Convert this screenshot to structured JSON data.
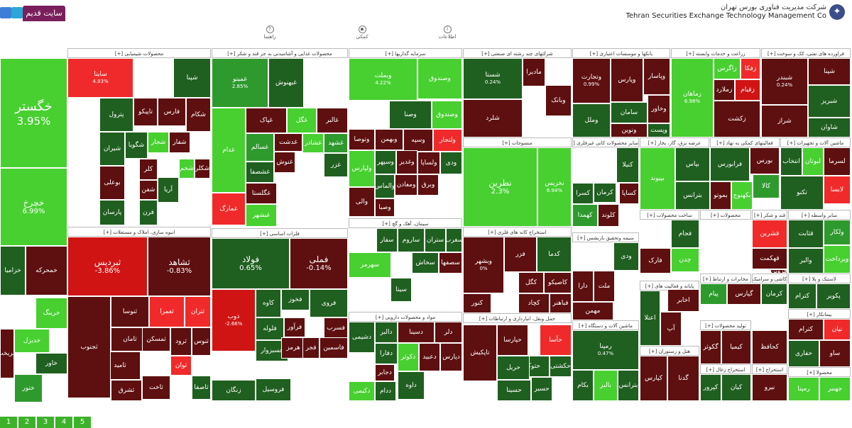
{
  "header": {
    "old_site_label": "سایت قدیم",
    "company_fa": "شرکت مدیریت فناوری بورس تهران",
    "company_en": "Tehran Securities Exchange Technology Management Co",
    "logo_icon": "tsetmc-logo-icon"
  },
  "nav": [
    {
      "label": "اطلاعات",
      "icon": "info-icon"
    },
    {
      "label": "کمکی",
      "icon": "apps-icon"
    },
    {
      "label": "راهنما",
      "icon": "help-icon"
    }
  ],
  "pager": [
    "1",
    "2",
    "3",
    "4",
    "5"
  ],
  "colors": {
    "dark_green": "#1f5f1f",
    "green": "#2e9a2e",
    "light_green": "#47d030",
    "dark_red": "#5e0f0f",
    "red": "#d01414",
    "bright_red": "#f02a2a"
  },
  "sections": [
    {
      "title": "فراورده های نفتی، کک و سوخت [+]"
    },
    {
      "title": "زراعت و خدمات وابسته [+]"
    },
    {
      "title": "بانکها و موسسات اعتباری [+]"
    },
    {
      "title": "شرکتهای چند رشته ای صنعتی [+]"
    },
    {
      "title": "سرمایه گذاریها [+]"
    },
    {
      "title": "محصولات غذایی و آشامیدنی به جز قند و شکر [+]"
    },
    {
      "title": "محصولات شیمیایی [+]"
    },
    {
      "title": "انبوه سازی، املاک و مستغلات [+]"
    },
    {
      "title": "فلزات اساسی [+]"
    },
    {
      "title": "سیمان، آهک و گچ [+]"
    },
    {
      "title": "مواد و محصولات دارویی [+]"
    },
    {
      "title": "منسوجات [+]"
    },
    {
      "title": "استخراج کانه های فلزی [+]"
    },
    {
      "title": "حمل ونقل، انبارداری و ارتباطات [+]"
    },
    {
      "title": "سایر محصولات کانی غیرفلزی [+]"
    },
    {
      "title": "عرضه برق، گاز، بخار [+]"
    },
    {
      "title": "فعالیتهای کمکی به نهاد [+]"
    },
    {
      "title": "ماشین آلات و تجهیزات [+]"
    },
    {
      "title": "ساخت محصولات [+]"
    },
    {
      "title": "محصولات [+]"
    },
    {
      "title": "قند و شکر [+]"
    },
    {
      "title": "سایر واسطه [+]"
    },
    {
      "title": "سیمه وتحقیق بازنشس [+]"
    },
    {
      "title": "پایانه و فعالیت های [+]"
    },
    {
      "title": "مخابرات و ارتباط [+]"
    },
    {
      "title": "کاشی و سرامیک [+]"
    },
    {
      "title": "لاستیک و پلا [+]"
    },
    {
      "title": "ماشین آلات و دستگاه [+]"
    },
    {
      "title": "هتل و رستوران [+]"
    },
    {
      "title": "تولید محصولات [+]"
    },
    {
      "title": "استخراج زغال [+]"
    },
    {
      "title": "استخراج [+]"
    },
    {
      "title": "بیمانکار [+]"
    },
    {
      "title": "محصولا [+]"
    }
  ],
  "tiles": {
    "khegostar": {
      "name": "خگستر",
      "pct": "3.95%"
    },
    "khchar": {
      "name": "خچرخ",
      "pct": "6.99%"
    },
    "khzamia": {
      "name": "خزامیا",
      "pct": ""
    },
    "khrining": {
      "name": "خرینگ",
      "pct": ""
    },
    "khodro": {
      "name": "خدیزل",
      "pct": ""
    },
    "khavar": {
      "name": "خاور",
      "pct": ""
    },
    "khtoor": {
      "name": "ختور",
      "pct": ""
    },
    "khnasa": {
      "name": "خمحرکه",
      "pct": ""
    },
    "khparan": {
      "name": "خریخت",
      "pct": ""
    },
    "tile_a1": {
      "name": "ساینا",
      "pct": "4.93%"
    },
    "tile_a2": {
      "name": "شپنا",
      "pct": ""
    },
    "tile_a3": {
      "name": "فارس",
      "pct": ""
    },
    "tile_a4": {
      "name": "تاپیکو",
      "pct": ""
    },
    "tile_a5": {
      "name": "پترول",
      "pct": ""
    },
    "tile_a6": {
      "name": "شیران",
      "pct": ""
    },
    "tile_a7": {
      "name": "بوعلی",
      "pct": ""
    },
    "tile_a8": {
      "name": "پارسان",
      "pct": ""
    },
    "tile_a9": {
      "name": "شگویا",
      "pct": ""
    },
    "tile_a10": {
      "name": "شجار",
      "pct": ""
    },
    "tile_a11": {
      "name": "شفار",
      "pct": ""
    },
    "tile_a12": {
      "name": "آریا",
      "pct": ""
    },
    "tile_a13": {
      "name": "کلر",
      "pct": ""
    },
    "tile_a14": {
      "name": "شخم",
      "pct": ""
    },
    "tile_a15": {
      "name": "شکلر",
      "pct": ""
    },
    "tile_a16": {
      "name": "شفن",
      "pct": ""
    },
    "tile_a17": {
      "name": "فرن",
      "pct": ""
    },
    "tile_a18": {
      "name": "شکام",
      "pct": ""
    },
    "tile_b1": {
      "name": "غمینو",
      "pct": "2.85%"
    },
    "tile_b2": {
      "name": "غبهنوش",
      "pct": ""
    },
    "tile_b3": {
      "name": "غالبر",
      "pct": ""
    },
    "tile_b4": {
      "name": "غگل",
      "pct": ""
    },
    "tile_b5": {
      "name": "غپاک",
      "pct": ""
    },
    "tile_b6": {
      "name": "غشهد",
      "pct": ""
    },
    "tile_b7": {
      "name": "غدشت",
      "pct": ""
    },
    "tile_b8": {
      "name": "غشاذر",
      "pct": ""
    },
    "tile_b9": {
      "name": "غسالم",
      "pct": ""
    },
    "tile_b10": {
      "name": "غشصفا",
      "pct": ""
    },
    "tile_b11": {
      "name": "غنوش",
      "pct": ""
    },
    "tile_b12": {
      "name": "غگلستا",
      "pct": ""
    },
    "tile_b13": {
      "name": "غبشهر",
      "pct": ""
    },
    "tile_b14": {
      "name": "غزر",
      "pct": ""
    },
    "tile_b15": {
      "name": "غدام",
      "pct": ""
    },
    "tile_b16": {
      "name": "غمارگ",
      "pct": ""
    },
    "tile_c1": {
      "name": "وبملت",
      "pct": "4.22%"
    },
    "tile_c2": {
      "name": "وصندوق",
      "pct": ""
    },
    "tile_c3": {
      "name": "وصنا",
      "pct": ""
    },
    "tile_c4": {
      "name": "ولتجار",
      "pct": ""
    },
    "tile_c5": {
      "name": "وبهمن",
      "pct": ""
    },
    "tile_c6": {
      "name": "وسپه",
      "pct": ""
    },
    "tile_c7": {
      "name": "وتوصا",
      "pct": ""
    },
    "tile_c8": {
      "name": "ولساپا",
      "pct": ""
    },
    "tile_c9": {
      "name": "وصندوق",
      "pct": ""
    },
    "tile_c10": {
      "name": "ولپارس",
      "pct": ""
    },
    "tile_c11": {
      "name": "والماس",
      "pct": ""
    },
    "tile_c12": {
      "name": "ودی",
      "pct": ""
    },
    "tile_c13": {
      "name": "وسپهر",
      "pct": ""
    },
    "tile_c14": {
      "name": "وغدیر",
      "pct": ""
    },
    "tile_c15": {
      "name": "والی",
      "pct": ""
    },
    "tile_c16": {
      "name": "ومعادن",
      "pct": ""
    },
    "tile_c17": {
      "name": "وصبا",
      "pct": ""
    },
    "tile_c18": {
      "name": "وبرق",
      "pct": ""
    },
    "tile_d1": {
      "name": "شستا",
      "pct": "0.24%"
    },
    "tile_d2": {
      "name": "وبانک",
      "pct": ""
    },
    "tile_d3": {
      "name": "شلرد",
      "pct": ""
    },
    "tile_d4": {
      "name": "مادیرا",
      "pct": ""
    },
    "tile_e1": {
      "name": "وتجارت",
      "pct": "0.99%"
    },
    "tile_e2": {
      "name": "وپارس",
      "pct": ""
    },
    "tile_e3": {
      "name": "وپاسار",
      "pct": ""
    },
    "tile_e4": {
      "name": "سامان",
      "pct": ""
    },
    "tile_e5": {
      "name": "وخاور",
      "pct": ""
    },
    "tile_e6": {
      "name": "ونوین",
      "pct": ""
    },
    "tile_e7": {
      "name": "وملل",
      "pct": ""
    },
    "tile_e8": {
      "name": "وپست",
      "pct": ""
    },
    "tile_f1": {
      "name": "زماهان",
      "pct": "6.98%"
    },
    "tile_f2": {
      "name": "زاگرس",
      "pct": ""
    },
    "tile_f3": {
      "name": "زفکا",
      "pct": ""
    },
    "tile_f4": {
      "name": "زملارد",
      "pct": ""
    },
    "tile_f5": {
      "name": "زقیام",
      "pct": ""
    },
    "tile_f6": {
      "name": "زکشت",
      "pct": ""
    },
    "tile_g1": {
      "name": "شبندر",
      "pct": "0.24%"
    },
    "tile_g2": {
      "name": "شبریز",
      "pct": ""
    },
    "tile_g3": {
      "name": "شپنا",
      "pct": ""
    },
    "tile_g4": {
      "name": "شراز",
      "pct": ""
    },
    "tile_g5": {
      "name": "شاوان",
      "pct": ""
    },
    "tile_h1": {
      "name": "ثنوسا",
      "pct": ""
    },
    "tile_h2": {
      "name": "ثشاهد",
      "pct": "-0.83%"
    },
    "tile_h3": {
      "name": "ثبردیس",
      "pct": "-3.86%"
    },
    "tile_h4": {
      "name": "ثتران",
      "pct": ""
    },
    "tile_h5": {
      "name": "ثامید",
      "pct": ""
    },
    "tile_h6": {
      "name": "ثامان",
      "pct": ""
    },
    "tile_h7": {
      "name": "ثمسکن",
      "pct": ""
    },
    "tile_h8": {
      "name": "ثرود",
      "pct": ""
    },
    "tile_h9": {
      "name": "ثنوس",
      "pct": ""
    },
    "tile_h10": {
      "name": "ثاخت",
      "pct": ""
    },
    "tile_h11": {
      "name": "ثشرق",
      "pct": ""
    },
    "tile_h12": {
      "name": "ثعمرا",
      "pct": ""
    },
    "tile_h13": {
      "name": "ثجنوب",
      "pct": ""
    },
    "tile_h14": {
      "name": "ثوان",
      "pct": ""
    },
    "tile_h15": {
      "name": "ثاصفا",
      "pct": ""
    },
    "tile_i1": {
      "name": "فولاد",
      "pct": "0.65%"
    },
    "tile_i2": {
      "name": "فملی",
      "pct": "-0.14%"
    },
    "tile_i3": {
      "name": "ذوب",
      "pct": "-2.66%"
    },
    "tile_i4": {
      "name": "فخوز",
      "pct": ""
    },
    "tile_i5": {
      "name": "فروی",
      "pct": ""
    },
    "tile_i6": {
      "name": "فسبزوار",
      "pct": ""
    },
    "tile_i7": {
      "name": "فلوله",
      "pct": ""
    },
    "tile_i8": {
      "name": "کاوه",
      "pct": ""
    },
    "tile_i9": {
      "name": "فرآور",
      "pct": ""
    },
    "tile_i10": {
      "name": "هرمز",
      "pct": ""
    },
    "tile_i11": {
      "name": "فجر",
      "pct": ""
    },
    "tile_i12": {
      "name": "فسرب",
      "pct": ""
    },
    "tile_i13": {
      "name": "زنگان",
      "pct": ""
    },
    "tile_i14": {
      "name": "فروسیل",
      "pct": ""
    },
    "tile_i15": {
      "name": "فاسمین",
      "pct": ""
    },
    "tile_j1": {
      "name": "ساروم",
      "pct": ""
    },
    "tile_j2": {
      "name": "سیتا",
      "pct": ""
    },
    "tile_j3": {
      "name": "ستران",
      "pct": ""
    },
    "tile_j4": {
      "name": "سغرب",
      "pct": ""
    },
    "tile_j5": {
      "name": "سفار",
      "pct": ""
    },
    "tile_j6": {
      "name": "سهرمز",
      "pct": ""
    },
    "tile_j7": {
      "name": "سخاش",
      "pct": ""
    },
    "tile_j8": {
      "name": "سصفها",
      "pct": ""
    },
    "tile_k1": {
      "name": "دلر",
      "pct": ""
    },
    "tile_k2": {
      "name": "دجابر",
      "pct": ""
    },
    "tile_k3": {
      "name": "دسینا",
      "pct": ""
    },
    "tile_k4": {
      "name": "دفارا",
      "pct": ""
    },
    "tile_k5": {
      "name": "ددام",
      "pct": ""
    },
    "tile_k6": {
      "name": "دشیمی",
      "pct": ""
    },
    "tile_k7": {
      "name": "دالبر",
      "pct": ""
    },
    "tile_k8": {
      "name": "دکوثر",
      "pct": ""
    },
    "tile_k9": {
      "name": "داوه",
      "pct": ""
    },
    "tile_k10": {
      "name": "دکیمی",
      "pct": ""
    },
    "tile_k11": {
      "name": "دعبید",
      "pct": ""
    },
    "tile_k12": {
      "name": "دپارس",
      "pct": ""
    },
    "tile_l1": {
      "name": "نطرین",
      "pct": "2.3%"
    },
    "tile_l2": {
      "name": "نخریس",
      "pct": "6.94%"
    },
    "tile_m1": {
      "name": "وبشهر",
      "pct": "0%"
    },
    "tile_m2": {
      "name": "فزر",
      "pct": ""
    },
    "tile_m3": {
      "name": "کدما",
      "pct": ""
    },
    "tile_m4": {
      "name": "کگل",
      "pct": ""
    },
    "tile_m5": {
      "name": "کاصیکو",
      "pct": ""
    },
    "tile_m6": {
      "name": "کچاد",
      "pct": ""
    },
    "tile_m7": {
      "name": "کنور",
      "pct": ""
    },
    "tile_m8": {
      "name": "فباهنر",
      "pct": ""
    },
    "tile_n1": {
      "name": "حتوکا",
      "pct": ""
    },
    "tile_n2": {
      "name": "حکشتی",
      "pct": ""
    },
    "tile_n3": {
      "name": "حریل",
      "pct": ""
    },
    "tile_n4": {
      "name": "حسیر",
      "pct": ""
    },
    "tile_n5": {
      "name": "حپارسا",
      "pct": ""
    },
    "tile_n6": {
      "name": "حآسا",
      "pct": ""
    },
    "tile_n7": {
      "name": "تاپکیش",
      "pct": ""
    },
    "tile_n8": {
      "name": "حسینا",
      "pct": ""
    },
    "tile_o1": {
      "name": "کرمان",
      "pct": ""
    },
    "tile_o2": {
      "name": "کسرا",
      "pct": ""
    },
    "tile_o3": {
      "name": "کنیلا",
      "pct": ""
    },
    "tile_o4": {
      "name": "کهمدا",
      "pct": ""
    },
    "tile_o5": {
      "name": "کلوند",
      "pct": ""
    },
    "tile_o6": {
      "name": "کساپا",
      "pct": ""
    },
    "tile_p1": {
      "name": "بورس",
      "pct": ""
    },
    "tile_p2": {
      "name": "فرابورس",
      "pct": ""
    },
    "tile_p3": {
      "name": "کالا",
      "pct": ""
    },
    "tile_p4": {
      "name": "بموتو",
      "pct": ""
    },
    "tile_p5": {
      "name": "بپیوند",
      "pct": ""
    },
    "tile_p6": {
      "name": "بپاس",
      "pct": ""
    },
    "tile_p7": {
      "name": "بترانس",
      "pct": ""
    },
    "tile_p8": {
      "name": "بکهنوج",
      "pct": ""
    },
    "tile_q1": {
      "name": "لسرما",
      "pct": ""
    },
    "tile_q2": {
      "name": "لابسا",
      "pct": ""
    },
    "tile_q3": {
      "name": "تکنو",
      "pct": ""
    },
    "tile_q4": {
      "name": "انتخاب",
      "pct": ""
    },
    "tile_q5": {
      "name": "لبوتان",
      "pct": ""
    },
    "tile_r1": {
      "name": "فجام",
      "pct": ""
    },
    "tile_r2": {
      "name": "چدن",
      "pct": ""
    },
    "tile_r3": {
      "name": "فارک",
      "pct": ""
    },
    "tile_r4": {
      "name": "قشرین",
      "pct": ""
    },
    "tile_r5": {
      "name": "قهکمت",
      "pct": ""
    },
    "tile_r6": {
      "name": "قزوین",
      "pct": ""
    },
    "tile_r7": {
      "name": "قثابت",
      "pct": ""
    },
    "tile_r8": {
      "name": "والبر",
      "pct": ""
    },
    "tile_r9": {
      "name": "ولکار",
      "pct": ""
    },
    "tile_r10": {
      "name": "وپرداخت",
      "pct": ""
    },
    "tile_s1": {
      "name": "ودی",
      "pct": ""
    },
    "tile_s2": {
      "name": "دارا",
      "pct": ""
    },
    "tile_s3": {
      "name": "ملت",
      "pct": ""
    },
    "tile_s4": {
      "name": "مهمن",
      "pct": ""
    },
    "tile_s5": {
      "name": "اخابر",
      "pct": ""
    },
    "tile_s6": {
      "name": "کرمان",
      "pct": ""
    },
    "tile_s7": {
      "name": "کترام",
      "pct": ""
    },
    "tile_s8": {
      "name": "پکویر",
      "pct": ""
    },
    "tile_s9": {
      "name": "پیام",
      "pct": ""
    },
    "tile_s10": {
      "name": "آپ",
      "pct": ""
    },
    "tile_s11": {
      "name": "اعتلا",
      "pct": ""
    },
    "tile_s12": {
      "name": "رمپنا",
      "pct": "0.47%"
    },
    "tile_s13": {
      "name": "بالبر",
      "pct": ""
    },
    "tile_s14": {
      "name": "بکام",
      "pct": ""
    },
    "tile_s15": {
      "name": "بترانس",
      "pct": ""
    },
    "tile_s16": {
      "name": "گکوثر",
      "pct": ""
    },
    "tile_s17": {
      "name": "کیمیا",
      "pct": ""
    },
    "tile_s18": {
      "name": "کحافظ",
      "pct": ""
    },
    "tile_s19": {
      "name": "کترام",
      "pct": ""
    },
    "tile_s20": {
      "name": "نیان",
      "pct": ""
    },
    "tile_s21": {
      "name": "حفاری",
      "pct": ""
    },
    "tile_s22": {
      "name": "ساو",
      "pct": ""
    },
    "tile_s23": {
      "name": "نیرو",
      "pct": ""
    },
    "tile_s24": {
      "name": "رمپنا",
      "pct": ""
    },
    "tile_s25": {
      "name": "جهنبر",
      "pct": ""
    },
    "tile_s26": {
      "name": "کیان",
      "pct": ""
    },
    "tile_s27": {
      "name": "گدنا",
      "pct": ""
    },
    "tile_s28": {
      "name": "کپرور",
      "pct": ""
    },
    "tile_s29": {
      "name": "کپارس",
      "pct": ""
    },
    "tile_s30": {
      "name": "گپارس",
      "pct": ""
    }
  }
}
